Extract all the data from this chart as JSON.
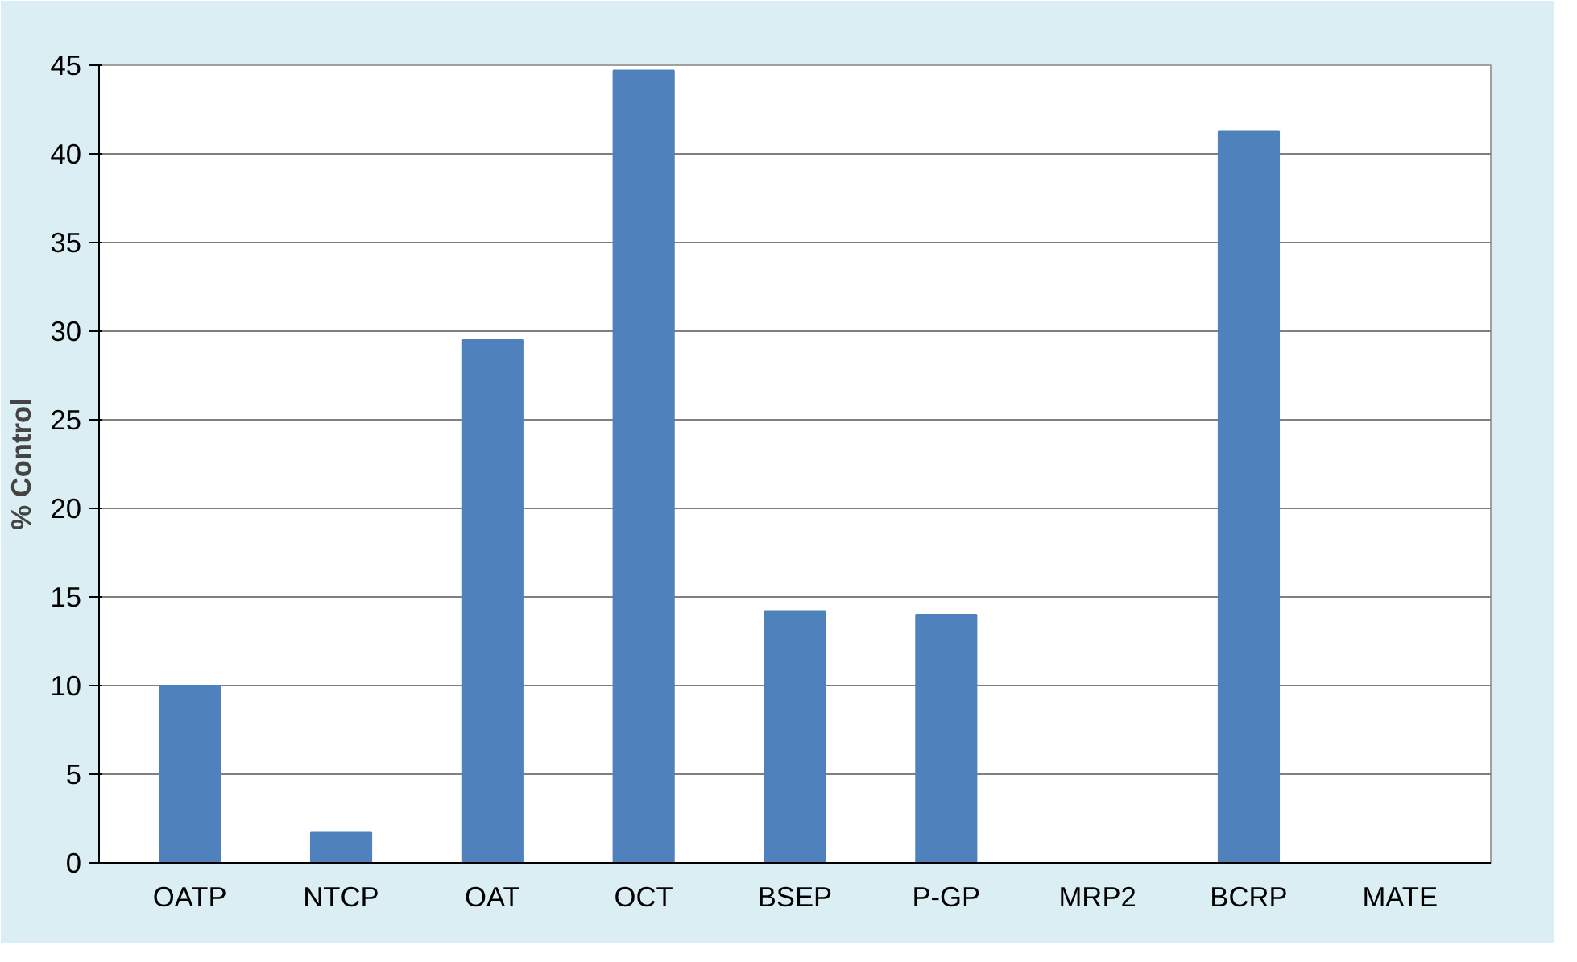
{
  "chart_data": {
    "type": "bar",
    "ylabel": "% Control",
    "categories": [
      "OATP",
      "NTCP",
      "OAT",
      "OCT",
      "BSEP",
      "P-GP",
      "MRP2",
      "BCRP",
      "MATE"
    ],
    "values": [
      10,
      1.7,
      29.5,
      44.7,
      14.2,
      14,
      0,
      41.3,
      0
    ],
    "color": "#4f81bd",
    "ylim": [
      0,
      45
    ],
    "yticks": [
      0,
      5,
      10,
      15,
      20,
      25,
      30,
      35,
      40,
      45
    ],
    "grid": "y"
  }
}
